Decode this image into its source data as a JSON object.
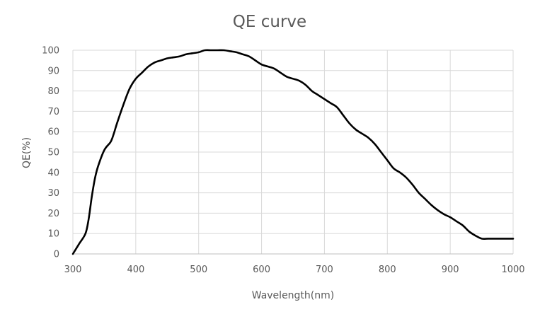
{
  "chart_data": {
    "type": "line",
    "title": "QE curve",
    "xlabel": "Wavelength(nm)",
    "ylabel": "QE(%)",
    "xlim": [
      300,
      1000
    ],
    "ylim": [
      0,
      100
    ],
    "xticks": [
      300,
      400,
      500,
      600,
      700,
      800,
      900,
      1000
    ],
    "yticks": [
      0,
      10,
      20,
      30,
      40,
      50,
      60,
      70,
      80,
      90,
      100
    ],
    "grid": true,
    "series": [
      {
        "name": "QE",
        "color": "#000000",
        "x": [
          300,
          310,
          320,
          325,
          330,
          335,
          340,
          350,
          360,
          365,
          370,
          380,
          390,
          400,
          410,
          420,
          430,
          440,
          450,
          460,
          470,
          480,
          490,
          500,
          510,
          520,
          530,
          540,
          550,
          560,
          570,
          580,
          590,
          600,
          610,
          620,
          630,
          640,
          650,
          660,
          670,
          680,
          690,
          700,
          710,
          720,
          730,
          740,
          750,
          760,
          770,
          780,
          790,
          800,
          810,
          820,
          830,
          840,
          850,
          860,
          870,
          880,
          890,
          900,
          910,
          920,
          930,
          940,
          950,
          960,
          970,
          980,
          990,
          1000
        ],
        "y": [
          0,
          5,
          10,
          17,
          28,
          37,
          43,
          51,
          55,
          59,
          64,
          73,
          81,
          86,
          89,
          92,
          94,
          95,
          96,
          96.5,
          97,
          98,
          98.5,
          99,
          100,
          100,
          100,
          100,
          99.5,
          99,
          98,
          97,
          95,
          93,
          92,
          91,
          89,
          87,
          86,
          85,
          83,
          80,
          78,
          76,
          74,
          72,
          68,
          64,
          61,
          59,
          57,
          54,
          50,
          46,
          42,
          40,
          37.5,
          34,
          30,
          27,
          24,
          21.5,
          19.5,
          18,
          16,
          14,
          11,
          9,
          7.5,
          7.5,
          7.5,
          7.5,
          7.5,
          7.5
        ]
      }
    ]
  }
}
